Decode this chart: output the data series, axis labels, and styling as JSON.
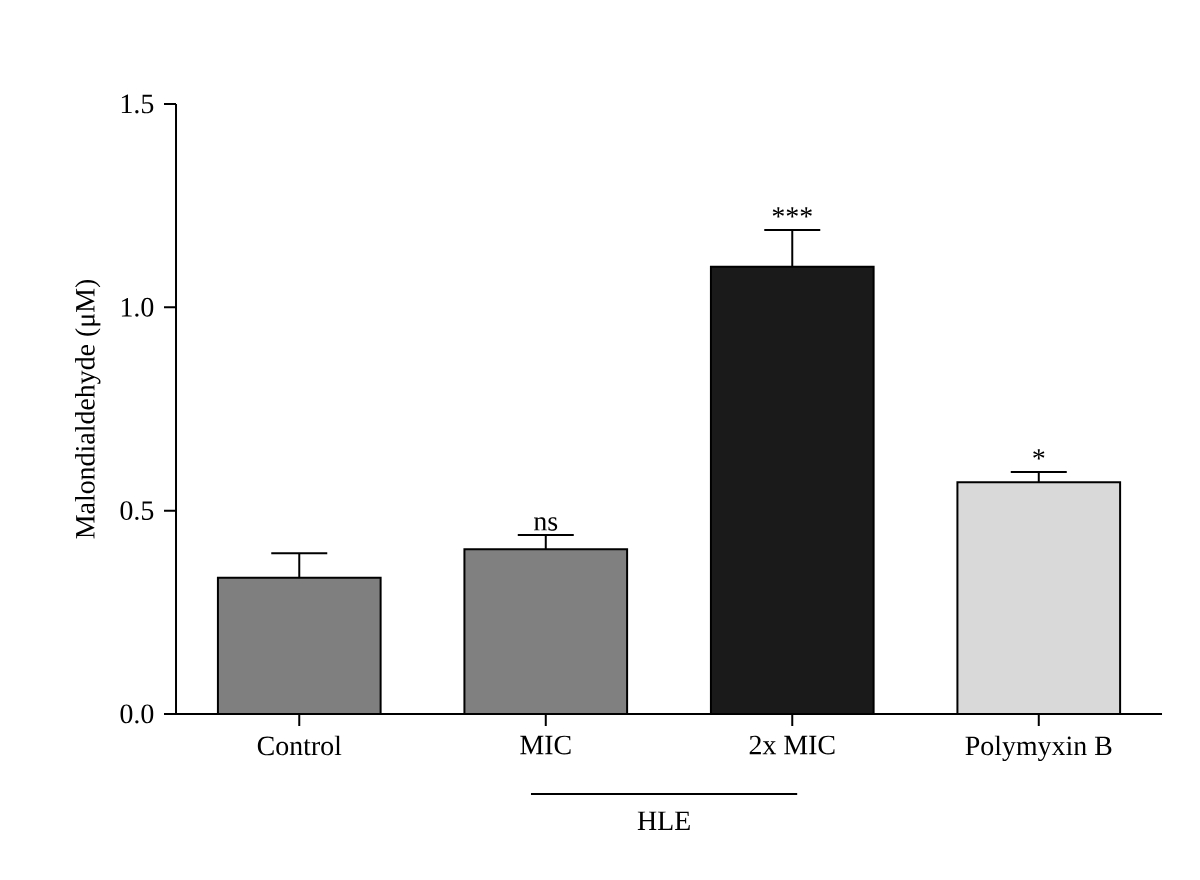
{
  "chart_data": {
    "type": "bar",
    "ylabel": "Malondialdehyde (μM)",
    "categories": [
      "Control",
      "MIC",
      "2x MIC",
      "Polymyxin B"
    ],
    "values": [
      0.335,
      0.405,
      1.1,
      0.57
    ],
    "errors": [
      [
        0.335,
        0.395
      ],
      [
        0.405,
        0.44
      ],
      [
        1.1,
        1.19
      ],
      [
        0.57,
        0.595
      ]
    ],
    "colors": [
      "#7f7f7f",
      "#808080",
      "#1a1a1a",
      "#d9d9d9"
    ],
    "ylim": [
      0,
      1.5
    ],
    "yticks": [
      {
        "value": 0,
        "label": "0.0"
      },
      {
        "value": 0.5,
        "label": "0.5"
      },
      {
        "value": 1.0,
        "label": "1.0"
      },
      {
        "value": 1.5,
        "label": "1.5"
      }
    ],
    "grid": false,
    "annotations": [
      {
        "text": "ns",
        "x": "MIC",
        "y": 0.405
      },
      {
        "text": "***",
        "x": "2x MIC",
        "y": 1.1
      },
      {
        "text": "*",
        "x": "Polymyxin B",
        "y": 0.57
      },
      "HLE"
    ]
  }
}
